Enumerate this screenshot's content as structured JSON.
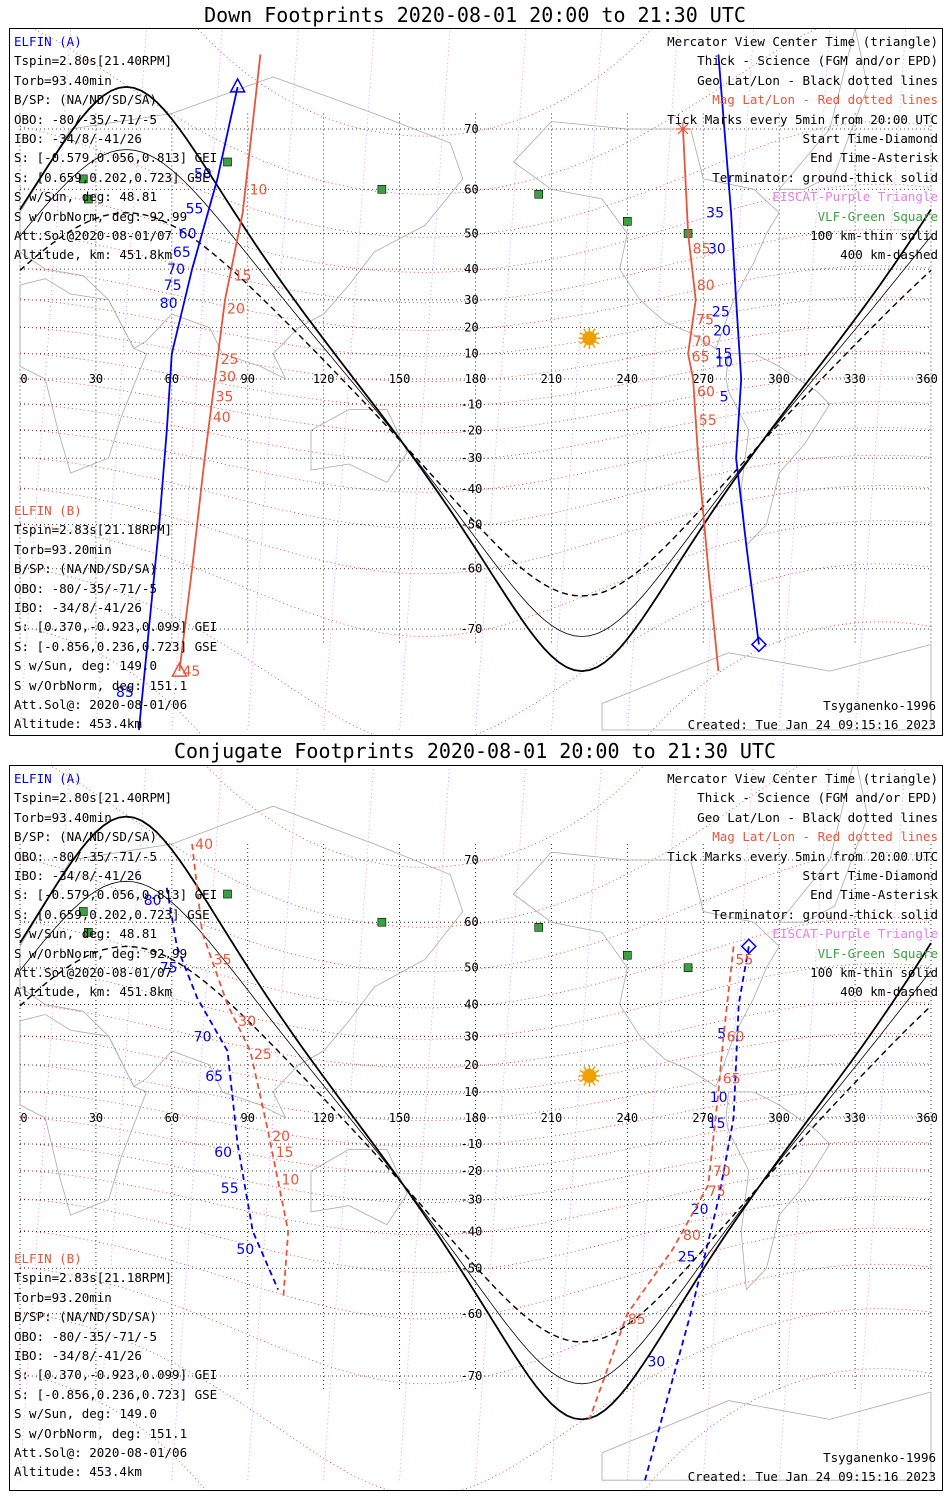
{
  "panels": [
    {
      "id": "down",
      "title": "Down Footprints 2020-08-01 20:00 to 21:30 UTC",
      "elfin_a": {
        "name": "ELFIN (A)",
        "lines": [
          "Tspin=2.80s[21.40RPM]",
          "Torb=93.40min",
          "B/SP: (NA/ND/SD/SA)",
          "OBO: -80/-35/-71/-5",
          "IBO: -34/8/-41/26",
          "S: [-0.579,0.056,0.813] GEI",
          "S: [0.659,0.202,0.723] GSE",
          "S w/Sun, deg: 48.81",
          "S w/OrbNorm, deg: 92.99",
          "Att.Sol@2020-08-01/07",
          "Altitude, km: 451.8km"
        ]
      },
      "elfin_b": {
        "name": "ELFIN (B)",
        "lines": [
          "Tspin=2.83s[21.18RPM]",
          "Torb=93.20min",
          "B/SP: (NA/ND/SD/SA)",
          "OBO: -80/-35/-71/-5",
          "IBO: -34/8/-41/26",
          "S: [0.370,-0.923,0.099] GEI",
          "S: [-0.856,0.236,0.723] GSE",
          "S w/Sun, deg: 149.0",
          "S w/OrbNorm, deg: 151.1",
          "Att.Sol@: 2020-08-01/06",
          "Altitude: 453.4km"
        ]
      },
      "legend": [
        {
          "text": "Mercator View Center Time (triangle)",
          "color": "#000000"
        },
        {
          "text": "Thick - Science (FGM and/or EPD)",
          "color": "#000000"
        },
        {
          "text": "Geo Lat/Lon - Black dotted lines",
          "color": "#000000"
        },
        {
          "text": "Mag Lat/Lon - Red dotted lines",
          "color": "#e8553a"
        },
        {
          "text": "Tick Marks every 5min from 20:00 UTC",
          "color": "#000000"
        },
        {
          "text": "Start Time-Diamond",
          "color": "#000000"
        },
        {
          "text": "End Time-Asterisk",
          "color": "#000000"
        },
        {
          "text": "Terminator: ground-thick solid",
          "color": "#000000"
        },
        {
          "text": "EISCAT-Purple Triangle",
          "color": "#e77ee7"
        },
        {
          "text": "VLF-Green Square",
          "color": "#3ca040"
        },
        {
          "text": "100 km-thin solid",
          "color": "#000000"
        },
        {
          "text": "400 km-dashed",
          "color": "#000000"
        }
      ],
      "model": "Tsyganenko-1996",
      "created": "Created: Tue Jan 24 09:15:16 2023",
      "tracks": [
        {
          "color": "#0000ee",
          "dashed": false,
          "points": [
            [
              86,
              75
            ],
            [
              78,
              62
            ],
            [
              68,
              40
            ],
            [
              60,
              10
            ],
            [
              58,
              -20
            ],
            [
              55,
              -50
            ],
            [
              47,
              -80
            ]
          ],
          "labels": [
            [
              "50",
              63
            ],
            [
              "55",
              56
            ],
            [
              "60",
              50
            ],
            [
              "65",
              45
            ],
            [
              "70",
              40
            ],
            [
              "75",
              35
            ],
            [
              "80",
              29
            ],
            [
              "85",
              -77
            ]
          ]
        },
        {
          "color": "#e8553a",
          "dashed": false,
          "points": [
            [
              95,
              78
            ],
            [
              88,
              55
            ],
            [
              81,
              30
            ],
            [
              77,
              0
            ],
            [
              73,
              -30
            ],
            [
              68,
              -60
            ],
            [
              63,
              -75
            ]
          ],
          "labels": [
            [
              "10",
              60
            ],
            [
              "15",
              38
            ],
            [
              "20",
              27
            ],
            [
              "25",
              8
            ],
            [
              "30",
              1
            ],
            [
              "35",
              -7
            ],
            [
              "40",
              -15
            ],
            [
              "45",
              -75
            ]
          ]
        },
        {
          "color": "#0000ee",
          "dashed": false,
          "points": [
            [
              276,
              78
            ],
            [
              281,
              55
            ],
            [
              283,
              30
            ],
            [
              285,
              0
            ],
            [
              283,
              -30
            ],
            [
              287,
              -55
            ],
            [
              292,
              -72
            ]
          ],
          "labels": [
            [
              "35",
              55
            ],
            [
              "30",
              46
            ],
            [
              "25",
              26
            ],
            [
              "20",
              19
            ],
            [
              "15",
              10
            ],
            [
              "10",
              7
            ],
            [
              "5",
              -7
            ]
          ]
        },
        {
          "color": "#e8553a",
          "dashed": false,
          "points": [
            [
              262,
              70
            ],
            [
              264,
              50
            ],
            [
              267,
              30
            ],
            [
              264,
              10
            ],
            [
              266,
              0
            ],
            [
              268,
              -30
            ],
            [
              272,
              -60
            ],
            [
              276,
              -75
            ]
          ],
          "labels": [
            [
              "85",
              46
            ],
            [
              "80",
              35
            ],
            [
              "75",
              23
            ],
            [
              "70",
              15
            ],
            [
              "65",
              9
            ],
            [
              "60",
              -5
            ],
            [
              "55",
              -16
            ]
          ]
        }
      ],
      "ticks_x": [
        "0",
        "30",
        "60",
        "90",
        "120",
        "150",
        "180",
        "210",
        "240",
        "270",
        "300",
        "330",
        "360"
      ],
      "ticks_y": [
        "70",
        "60",
        "50",
        "40",
        "30",
        "20",
        "10",
        "-10",
        "-20",
        "-30",
        "-40",
        "-50",
        "-60",
        "-70"
      ]
    },
    {
      "id": "conj",
      "title": "Conjugate Footprints 2020-08-01 20:00 to 21:30 UTC",
      "elfin_a": {
        "name": "ELFIN (A)",
        "lines": [
          "Tspin=2.80s[21.40RPM]",
          "Torb=93.40min",
          "B/SP: (NA/ND/SD/SA)",
          "OBO: -80/-35/-71/-5",
          "IBO: -34/8/-41/26",
          "S: [-0.579,0.056,0.813] GEI",
          "S: [0.659,0.202,0.723] GSE",
          "S w/Sun, deg: 48.81",
          "S w/OrbNorm, deg: 92.99",
          "Att.Sol@2020-08-01/07",
          "Altitude, km: 451.8km"
        ]
      },
      "elfin_b": {
        "name": "ELFIN (B)",
        "lines": [
          "Tspin=2.83s[21.18RPM]",
          "Torb=93.20min",
          "B/SP: (NA/ND/SD/SA)",
          "OBO: -80/-35/-71/-5",
          "IBO: -34/8/-41/26",
          "S: [0.370,-0.923,0.099] GEI",
          "S: [-0.856,0.236,0.723] GSE",
          "S w/Sun, deg: 149.0",
          "S w/OrbNorm, deg: 151.1",
          "Att.Sol@: 2020-08-01/06",
          "Altitude: 453.4km"
        ]
      },
      "legend": [
        {
          "text": "Mercator View Center Time (triangle)",
          "color": "#000000"
        },
        {
          "text": "Thick - Science (FGM and/or EPD)",
          "color": "#000000"
        },
        {
          "text": "Geo Lat/Lon - Black dotted lines",
          "color": "#000000"
        },
        {
          "text": "Mag Lat/Lon - Red dotted lines",
          "color": "#e8553a"
        },
        {
          "text": "Tick Marks every 5min from 20:00 UTC",
          "color": "#000000"
        },
        {
          "text": "Start Time-Diamond",
          "color": "#000000"
        },
        {
          "text": "End Time-Asterisk",
          "color": "#000000"
        },
        {
          "text": "Terminator: ground-thick solid",
          "color": "#000000"
        },
        {
          "text": "EISCAT-Purple Triangle",
          "color": "#e77ee7"
        },
        {
          "text": "VLF-Green Square",
          "color": "#3ca040"
        },
        {
          "text": "100 km-thin solid",
          "color": "#000000"
        },
        {
          "text": "400 km-dashed",
          "color": "#000000"
        }
      ],
      "model": "Tsyganenko-1996",
      "created": "Created: Tue Jan 24 09:15:16 2023",
      "tracks": [
        {
          "color": "#0000ee",
          "dashed": true,
          "points": [
            [
              58,
              66
            ],
            [
              62,
              55
            ],
            [
              70,
              42
            ],
            [
              82,
              25
            ],
            [
              86,
              -10
            ],
            [
              92,
              -40
            ],
            [
              102,
              -55
            ]
          ],
          "labels": [
            [
              "80",
              64
            ],
            [
              "75",
              50
            ],
            [
              "70",
              30
            ],
            [
              "65",
              16
            ],
            [
              "60",
              -13
            ],
            [
              "55",
              -26
            ],
            [
              "50",
              -45
            ]
          ]
        },
        {
          "color": "#e8553a",
          "dashed": true,
          "points": [
            [
              68,
              72
            ],
            [
              72,
              58
            ],
            [
              82,
              40
            ],
            [
              91,
              25
            ],
            [
              98,
              -5
            ],
            [
              106,
              -40
            ],
            [
              104,
              -57
            ]
          ],
          "labels": [
            [
              "40",
              73
            ],
            [
              "35",
              52
            ],
            [
              "30",
              35
            ],
            [
              "25",
              24
            ],
            [
              "20",
              -7
            ],
            [
              "15",
              -13
            ],
            [
              "10",
              -23
            ]
          ]
        },
        {
          "color": "#0000ee",
          "dashed": true,
          "points": [
            [
              288,
              55
            ],
            [
              284,
              40
            ],
            [
              282,
              0
            ],
            [
              276,
              -30
            ],
            [
              265,
              -60
            ],
            [
              247,
              -80
            ]
          ],
          "labels": [
            [
              "5",
              31
            ],
            [
              "10",
              8
            ],
            [
              "15",
              -2
            ],
            [
              "20",
              -33
            ],
            [
              "25",
              -47
            ],
            [
              "30",
              -68
            ]
          ]
        },
        {
          "color": "#e8553a",
          "dashed": true,
          "points": [
            [
              282,
              55
            ],
            [
              278,
              30
            ],
            [
              276,
              10
            ],
            [
              272,
              -25
            ],
            [
              258,
              -45
            ],
            [
              240,
              -60
            ],
            [
              225,
              -75
            ]
          ],
          "labels": [
            [
              "55",
              52
            ],
            [
              "60",
              30
            ],
            [
              "65",
              15
            ],
            [
              "70",
              -20
            ],
            [
              "75",
              -27
            ],
            [
              "80",
              -41
            ],
            [
              "85",
              -61
            ]
          ]
        }
      ],
      "ticks_x": [
        "0",
        "30",
        "60",
        "90",
        "120",
        "150",
        "180",
        "210",
        "240",
        "270",
        "300",
        "330",
        "360"
      ],
      "ticks_y": [
        "70",
        "60",
        "50",
        "40",
        "30",
        "20",
        "10",
        "-10",
        "-20",
        "-30",
        "-40",
        "-50",
        "-60",
        "-70"
      ]
    }
  ]
}
